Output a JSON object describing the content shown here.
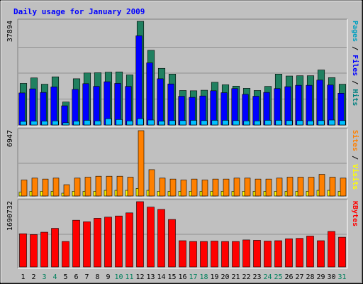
{
  "chart_data": {
    "type": "bar",
    "title": "Daily usage for January 2009",
    "days": [
      "1",
      "2",
      "3",
      "4",
      "5",
      "6",
      "7",
      "8",
      "9",
      "10",
      "11",
      "12",
      "13",
      "14",
      "15",
      "16",
      "17",
      "18",
      "19",
      "20",
      "21",
      "22",
      "23",
      "24",
      "25",
      "26",
      "27",
      "28",
      "29",
      "30",
      "31"
    ],
    "weekend_days": [
      "3",
      "4",
      "10",
      "11",
      "17",
      "18",
      "24",
      "25",
      "31"
    ],
    "panels": [
      {
        "id": "hits",
        "max_label": "37894",
        "ylim": [
          0,
          37894
        ],
        "labels": [
          {
            "text": "Pages",
            "color": "#00a0c0"
          },
          {
            "text": " / ",
            "color": "#000000"
          },
          {
            "text": "Files",
            "color": "#0000ff"
          },
          {
            "text": " / ",
            "color": "#000000"
          },
          {
            "text": "Hits",
            "color": "#008080"
          }
        ],
        "series": [
          {
            "name": "Hits",
            "color": "#208060",
            "values": [
              15200,
              17200,
              14900,
              17600,
              8400,
              16900,
              19000,
              19100,
              19300,
              19400,
              18300,
              37894,
              27300,
              20700,
              18600,
              12600,
              12500,
              12700,
              15600,
              14700,
              14200,
              13400,
              12600,
              14100,
              18600,
              17900,
              18000,
              18000,
              20100,
              17300,
              14900
            ]
          },
          {
            "name": "Files",
            "color": "#0000ff",
            "values": [
              11700,
              13200,
              11900,
              13900,
              7000,
              13000,
              15100,
              14100,
              15800,
              15200,
              14100,
              32600,
              22700,
              16900,
              15000,
              10500,
              10100,
              10600,
              12500,
              11800,
              13300,
              11200,
              10500,
              11900,
              13300,
              14000,
              14500,
              14500,
              16400,
              14600,
              11600
            ]
          },
          {
            "name": "Pages",
            "color": "#00c0ff",
            "values": [
              1300,
              1400,
              1400,
              1500,
              800,
              1400,
              1700,
              1500,
              2300,
              2000,
              1500,
              2300,
              1800,
              1400,
              1600,
              1600,
              1700,
              1600,
              1700,
              1700,
              1600,
              1500,
              1500,
              1700,
              1700,
              1600,
              1600,
              1500,
              1600,
              1800,
              1600
            ]
          }
        ]
      },
      {
        "id": "visits",
        "max_label": "6947",
        "ylim": [
          0,
          6947
        ],
        "labels": [
          {
            "text": "Sites",
            "color": "#ff8000"
          },
          {
            "text": " / ",
            "color": "#000000"
          },
          {
            "text": "Visits",
            "color": "#ffff00"
          }
        ],
        "series": [
          {
            "name": "Visits",
            "color": "#ffff00",
            "values": [
              400,
              500,
              500,
              500,
              300,
              500,
              500,
              500,
              600,
              600,
              600,
              800,
              600,
              500,
              500,
              500,
              500,
              500,
              500,
              500,
              500,
              500,
              500,
              500,
              500,
              500,
              500,
              500,
              600,
              600,
              500
            ]
          },
          {
            "name": "Sites",
            "color": "#ff8000",
            "values": [
              1700,
              1900,
              1800,
              1900,
              1200,
              1900,
              2000,
              2100,
              2100,
              2100,
              2000,
              6947,
              2800,
              1900,
              1800,
              1700,
              1800,
              1700,
              1800,
              1800,
              1900,
              1900,
              1800,
              1800,
              1900,
              2000,
              2000,
              2000,
              2300,
              2000,
              1900
            ]
          }
        ]
      },
      {
        "id": "kbytes",
        "max_label": "1690732",
        "ylim": [
          0,
          1690732
        ],
        "labels": [
          {
            "text": "KBytes",
            "color": "#ff0000"
          }
        ],
        "series": [
          {
            "name": "KBytes",
            "color": "#ff0000",
            "values": [
              860000,
              840000,
              900000,
              1000000,
              660000,
              1210000,
              1170000,
              1260000,
              1290000,
              1320000,
              1400000,
              1690732,
              1550000,
              1490000,
              1230000,
              680000,
              660000,
              660000,
              670000,
              660000,
              660000,
              700000,
              690000,
              670000,
              680000,
              730000,
              740000,
              800000,
              680000,
              920000,
              770000
            ]
          }
        ]
      }
    ]
  }
}
